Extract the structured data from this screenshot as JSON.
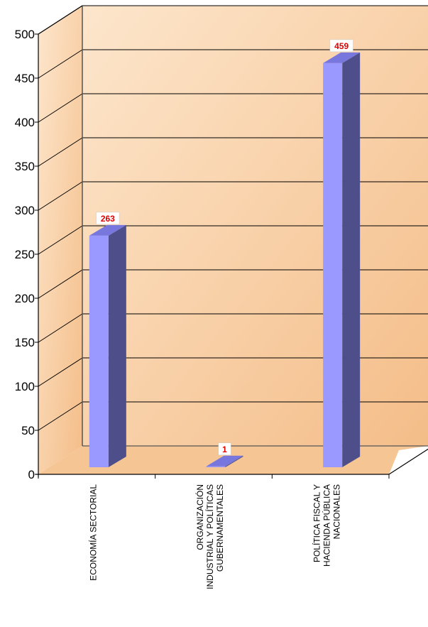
{
  "chart_data": {
    "type": "bar",
    "title": "",
    "xlabel": "",
    "ylabel": "",
    "categories": [
      [
        "ECONOMÍA SECTORIAL"
      ],
      [
        "ORGANIZACIÓN",
        "INDUSTRIAL Y POLÍTICAS",
        "GUBERNAMENTALES"
      ],
      [
        "POLÍTICA FISCAL Y",
        "HACIENDA PÚBLICA",
        "NACIONALES"
      ]
    ],
    "values": [
      263,
      1,
      459
    ],
    "data_labels": [
      "263",
      "1",
      "459"
    ],
    "ylim": [
      0,
      500
    ],
    "yticks": [
      0,
      50,
      100,
      150,
      200,
      250,
      300,
      350,
      400,
      450,
      500
    ],
    "grid": true,
    "three_d": true
  },
  "colors": {
    "bar_front": "#9999ff",
    "bar_side": "#4e4e8a",
    "bar_top": "#7777dd",
    "wall_light": "#fde6cc",
    "wall_dark": "#f4bd88",
    "floor": "#f6c594",
    "label_text": "#e00000",
    "grid": "#000000"
  }
}
